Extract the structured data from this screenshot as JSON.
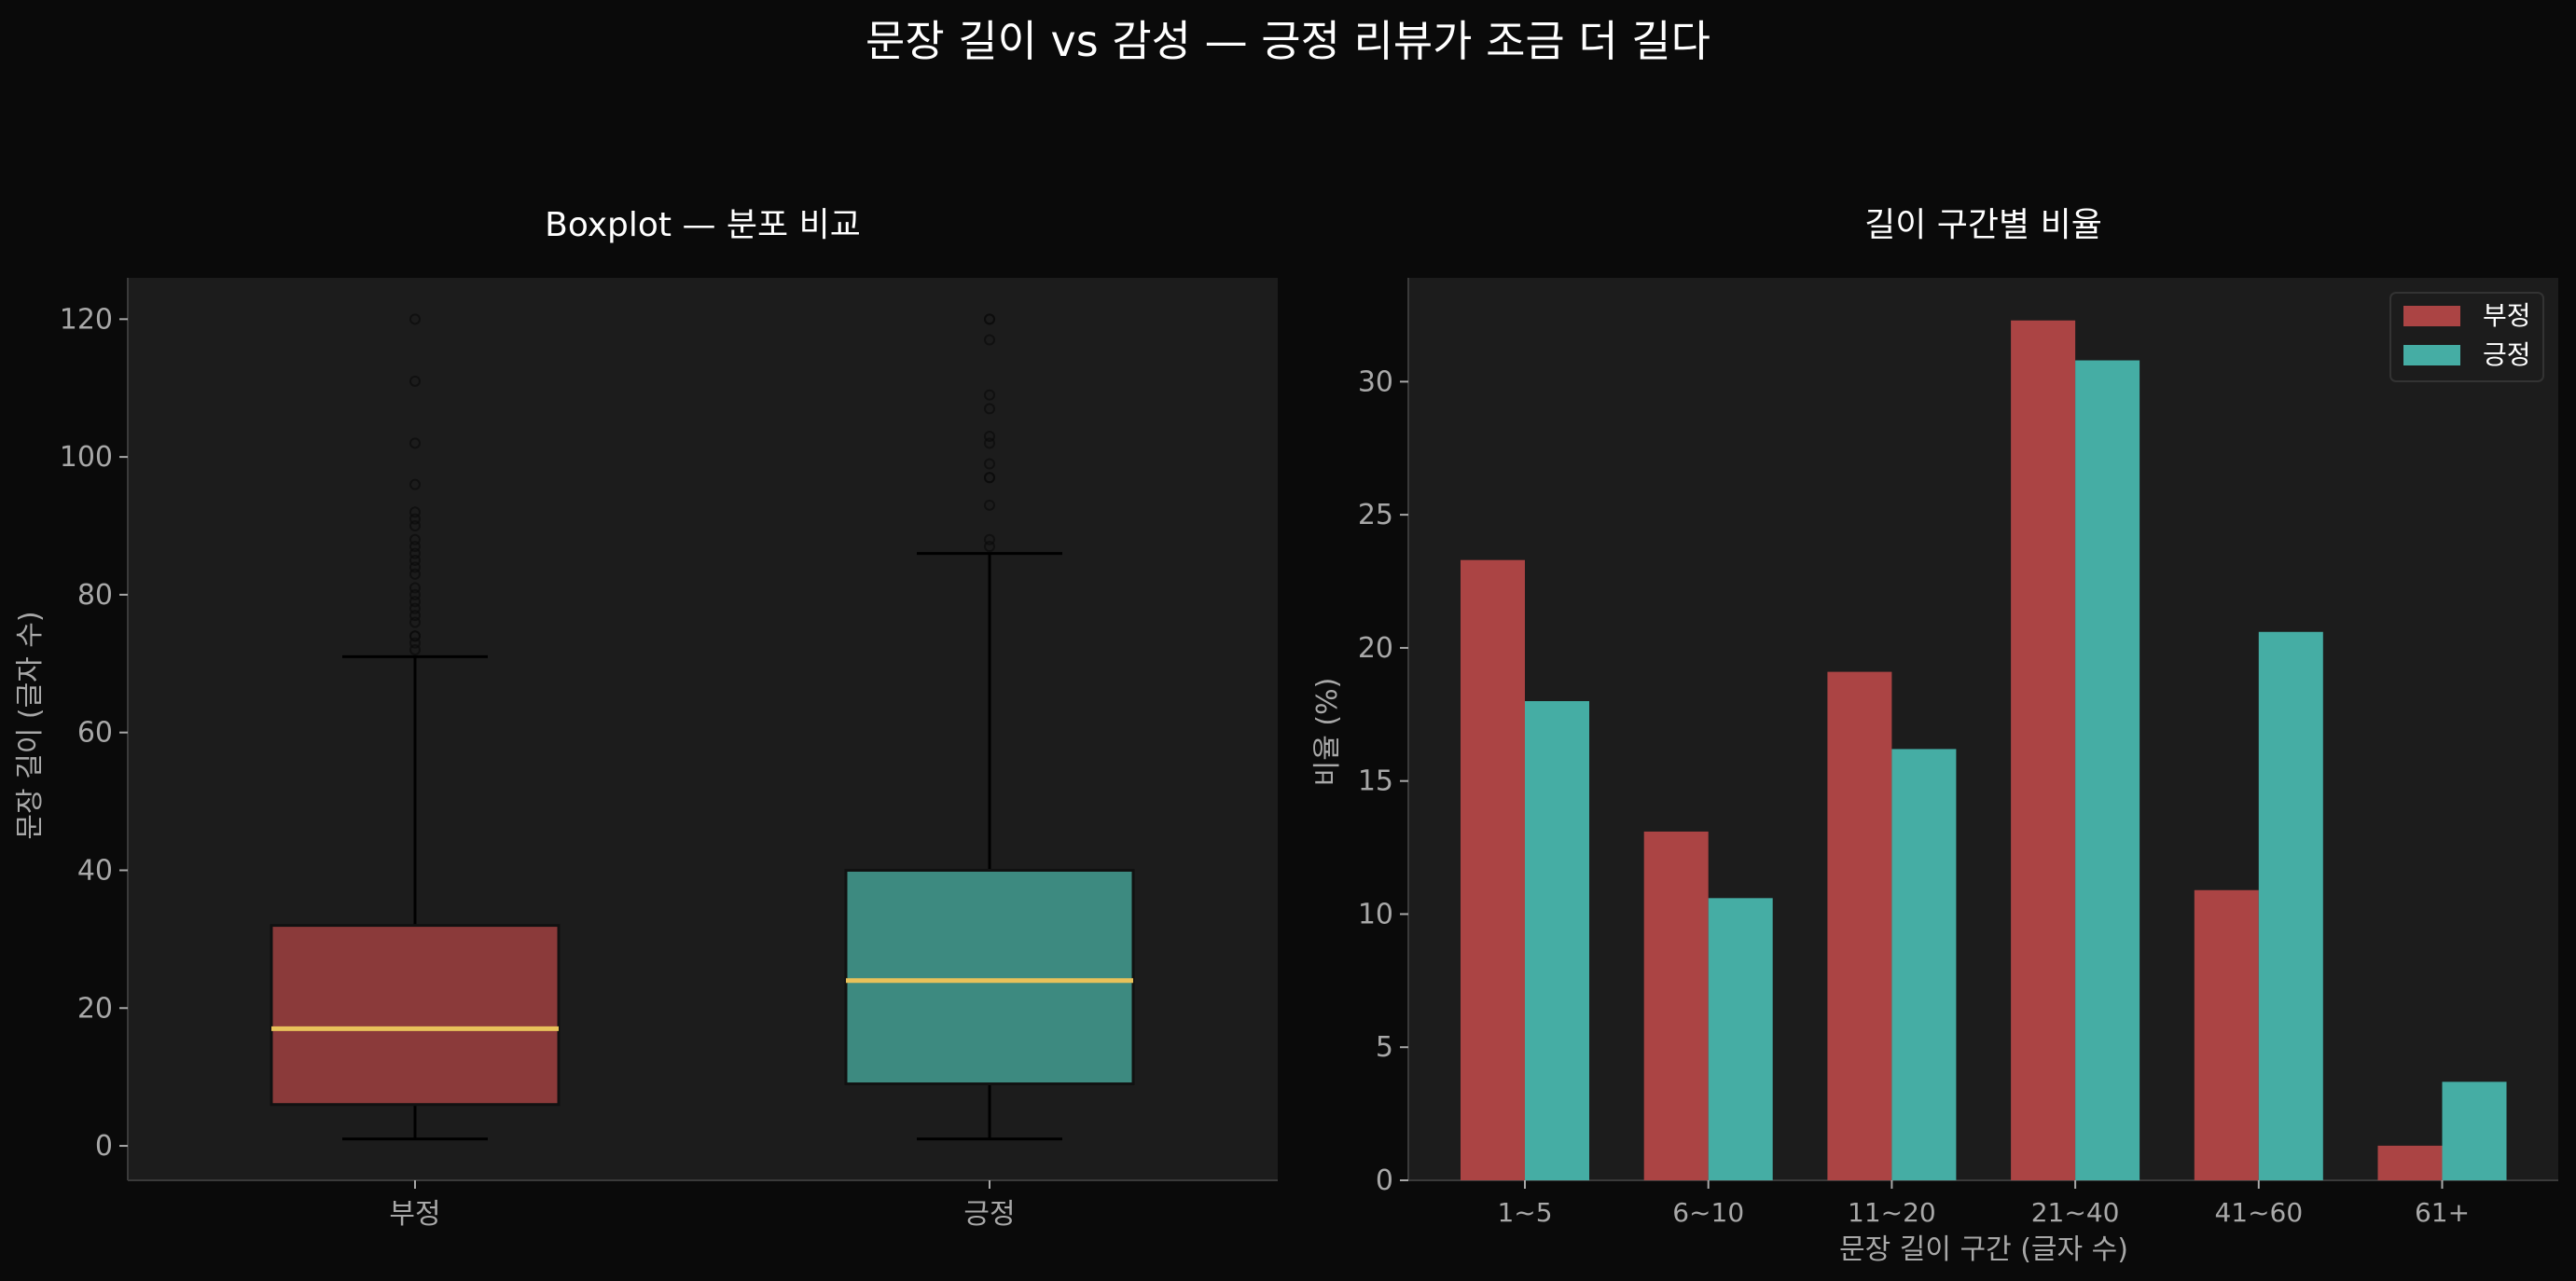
{
  "figure": {
    "title": "문장 길이 vs 감성 — 긍정 리뷰가 조금 더 길다",
    "background": "#0a0a0a",
    "axes_facecolor": "#1c1c1c",
    "colors": {
      "negative_box": "#8b3a3a",
      "positive_box": "#3d8a80",
      "median": "#e8c15a",
      "negative_bar": "#ab4444",
      "positive_bar": "#45ada4"
    }
  },
  "chart_data": [
    {
      "type": "box",
      "title": "Boxplot — 분포 비교",
      "xlabel": "",
      "ylabel": "문장 길이 (글자 수)",
      "categories": [
        "부정",
        "긍정"
      ],
      "yticks": [
        0,
        20,
        40,
        60,
        80,
        100,
        120
      ],
      "ylim": [
        -5,
        126
      ],
      "grid": false,
      "series": [
        {
          "name": "부정",
          "whisker_low": 1,
          "q1": 6,
          "median": 17,
          "q3": 32,
          "whisker_high": 71,
          "outliers": [
            72,
            73,
            74,
            74,
            76,
            77,
            78,
            79,
            80,
            81,
            83,
            84,
            85,
            86,
            87,
            88,
            90,
            91,
            92,
            96,
            102,
            111,
            120
          ]
        },
        {
          "name": "긍정",
          "whisker_low": 1,
          "q1": 9,
          "median": 24,
          "q3": 40,
          "whisker_high": 86,
          "outliers": [
            87,
            88,
            93,
            97,
            97,
            99,
            102,
            103,
            107,
            109,
            117,
            120,
            120
          ]
        }
      ]
    },
    {
      "type": "bar",
      "title": "길이 구간별 비율",
      "xlabel": "문장 길이 구간 (글자 수)",
      "ylabel": "비율 (%)",
      "categories": [
        "1~5",
        "6~10",
        "11~20",
        "21~40",
        "41~60",
        "61+"
      ],
      "yticks": [
        0,
        5,
        10,
        15,
        20,
        25,
        30
      ],
      "ylim": [
        0,
        33.9
      ],
      "grid": false,
      "legend_position": "upper right",
      "series": [
        {
          "name": "부정",
          "values": [
            23.3,
            13.1,
            19.1,
            32.3,
            10.9,
            1.3
          ]
        },
        {
          "name": "긍정",
          "values": [
            18.0,
            10.6,
            16.2,
            30.8,
            20.6,
            3.7
          ]
        }
      ]
    }
  ]
}
